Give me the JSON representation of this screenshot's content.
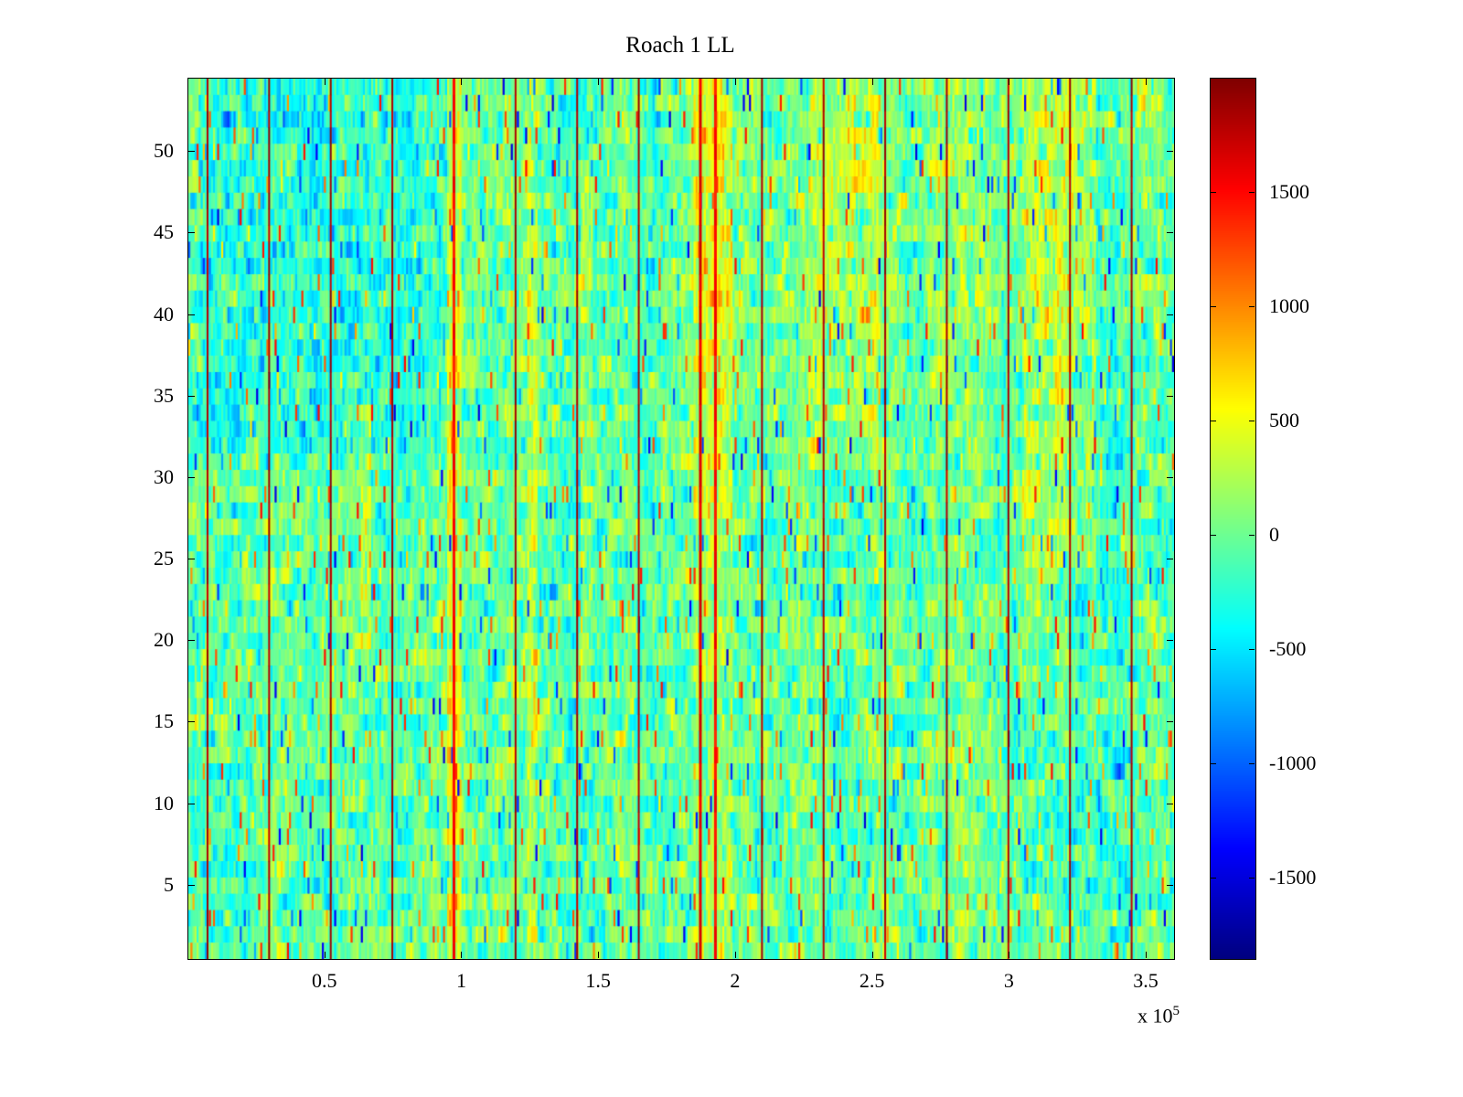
{
  "chart_data": {
    "type": "heatmap",
    "title": "Roach 1 LL",
    "xlabel": "",
    "ylabel": "",
    "x_range": [
      0,
      360000
    ],
    "y_range": [
      0.5,
      54.5
    ],
    "x_tick_values": [
      50000,
      100000,
      150000,
      200000,
      250000,
      300000,
      350000
    ],
    "x_tick_labels": [
      "0.5",
      "1",
      "1.5",
      "2",
      "2.5",
      "3",
      "3.5"
    ],
    "x_multiplier": {
      "base": "x 10",
      "exp": "5"
    },
    "y_tick_values": [
      5,
      10,
      15,
      20,
      25,
      30,
      35,
      40,
      45,
      50
    ],
    "y_tick_labels": [
      "5",
      "10",
      "15",
      "20",
      "25",
      "30",
      "35",
      "40",
      "45",
      "50"
    ],
    "colormap": "jet",
    "color_range": [
      -1850,
      2000
    ],
    "colorbar_tick_values": [
      1500,
      1000,
      500,
      0,
      -500,
      -1000,
      -1500
    ],
    "colorbar_tick_labels": [
      "1500",
      "1000",
      "500",
      "0",
      "-500",
      "-1000",
      "-1500"
    ],
    "grid": {
      "rows": 54,
      "cols": 480
    },
    "seed": 42,
    "noise_mean": -40,
    "noise_std": 235,
    "speckle_prob": 0.045,
    "speckle_positive_prob": 0.62,
    "features": [
      {
        "x0": 0.01,
        "x1": 0.27,
        "y0": 0.58,
        "y1": 1.0,
        "amp": -200
      },
      {
        "x0": 0.0,
        "x1": 0.08,
        "y0": 0.0,
        "y1": 1.0,
        "amp": -80
      },
      {
        "x0": 0.262,
        "x1": 0.278,
        "y0": 0.0,
        "y1": 1.0,
        "amp": 370
      },
      {
        "x0": 0.343,
        "x1": 0.355,
        "y0": 0.0,
        "y1": 1.0,
        "amp": 260
      },
      {
        "x0": 0.175,
        "x1": 0.186,
        "y0": 0.36,
        "y1": 0.64,
        "amp": 430
      },
      {
        "x0": 0.398,
        "x1": 0.41,
        "y0": 0.3,
        "y1": 0.92,
        "amp": 240
      },
      {
        "x0": 0.512,
        "x1": 0.552,
        "y0": 0.5,
        "y1": 1.0,
        "amp": 320
      },
      {
        "x0": 0.512,
        "x1": 0.552,
        "y0": 0.0,
        "y1": 0.5,
        "amp": 130
      },
      {
        "x0": 0.63,
        "x1": 0.7,
        "y0": 0.55,
        "y1": 1.0,
        "amp": 230
      },
      {
        "x0": 0.845,
        "x1": 0.92,
        "y0": 0.45,
        "y1": 1.0,
        "amp": 280
      },
      {
        "x0": 0.5,
        "x1": 1.0,
        "y0": 0.72,
        "y1": 1.0,
        "amp": 80
      },
      {
        "x0": 0.93,
        "x1": 1.0,
        "y0": 0.0,
        "y1": 1.0,
        "amp": -60
      }
    ],
    "vertical_lines": [
      {
        "x": 7000,
        "value": 1950,
        "width": 2
      },
      {
        "x": 29500,
        "value": 1950,
        "width": 2
      },
      {
        "x": 52000,
        "value": 1950,
        "width": 2
      },
      {
        "x": 74500,
        "value": 1950,
        "width": 2
      },
      {
        "x": 97000,
        "value": 1600,
        "width": 3
      },
      {
        "x": 119500,
        "value": 1950,
        "width": 2
      },
      {
        "x": 142000,
        "value": 1950,
        "width": 2
      },
      {
        "x": 164500,
        "value": 1950,
        "width": 2
      },
      {
        "x": 187000,
        "value": 1750,
        "width": 3
      },
      {
        "x": 192500,
        "value": 1600,
        "width": 3
      },
      {
        "x": 209500,
        "value": 1950,
        "width": 2
      },
      {
        "x": 232000,
        "value": 1950,
        "width": 2
      },
      {
        "x": 254500,
        "value": 1950,
        "width": 2
      },
      {
        "x": 277000,
        "value": 1950,
        "width": 2
      },
      {
        "x": 299500,
        "value": 1950,
        "width": 2
      },
      {
        "x": 322000,
        "value": 1950,
        "width": 2
      },
      {
        "x": 344500,
        "value": 1950,
        "width": 2
      }
    ]
  }
}
